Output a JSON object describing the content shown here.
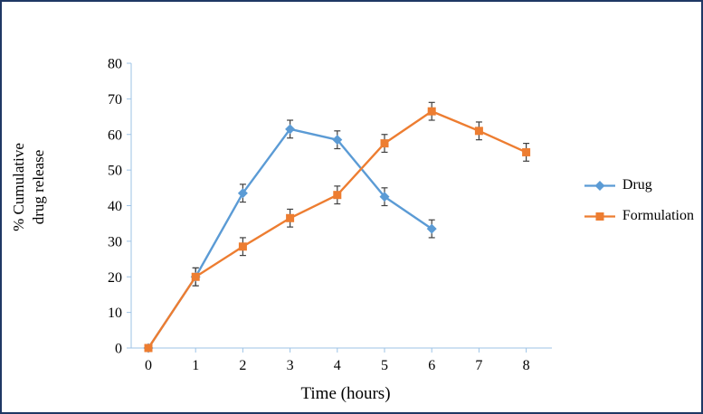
{
  "chart_data": {
    "type": "line",
    "title": "",
    "xlabel": "Time (hours)",
    "ylabel": "% Cumulative drug release",
    "xlim": [
      0,
      8
    ],
    "ylim": [
      0,
      80
    ],
    "ytick_step": 10,
    "xticks": [
      0,
      1,
      2,
      3,
      4,
      5,
      6,
      7,
      8
    ],
    "grid": false,
    "legend_position": "right",
    "error_bars": 2.5,
    "series": [
      {
        "name": "Drug",
        "color": "#5B9BD5",
        "marker": "diamond",
        "x": [
          0,
          1,
          2,
          3,
          4,
          5,
          6
        ],
        "values": [
          0,
          20,
          43.5,
          61.5,
          58.5,
          42.5,
          33.5
        ]
      },
      {
        "name": "Formulation",
        "color": "#ED7D31",
        "marker": "square",
        "x": [
          0,
          1,
          2,
          3,
          4,
          5,
          6,
          7,
          8
        ],
        "values": [
          0,
          20,
          28.5,
          36.5,
          43,
          57.5,
          66.5,
          61,
          55
        ]
      }
    ]
  },
  "style": {
    "frame_border_color": "#1f3864",
    "axis_line_color": "#9DC3E6",
    "tick_label_color": "#000000",
    "error_bar_color": "#404040"
  }
}
